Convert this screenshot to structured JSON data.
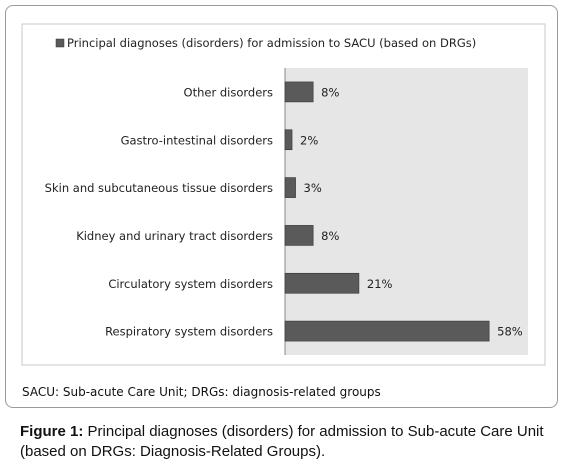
{
  "chart_data": {
    "type": "bar",
    "orientation": "horizontal",
    "legend": "Principal diagnoses (disorders) for admission to SACU (based on DRGs)",
    "categories": [
      "Other disorders",
      "Gastro-intestinal disorders",
      "Skin and subcutaneous tissue disorders",
      "Kidney and urinary tract disorders",
      "Circulatory system disorders",
      "Respiratory system disorders"
    ],
    "values": [
      8,
      2,
      3,
      8,
      21,
      58
    ],
    "value_labels": [
      "8%",
      "2%",
      "3%",
      "8%",
      "21%",
      "58%"
    ],
    "color": "#5a5a5a"
  },
  "footnote": "SACU: Sub-acute Care Unit; DRGs: diagnosis-related groups",
  "caption": {
    "label": "Figure 1:",
    "text": "Principal diagnoses (disorders) for admission to Sub-acute Care Unit (based on DRGs: Diagnosis-Related Groups)."
  }
}
